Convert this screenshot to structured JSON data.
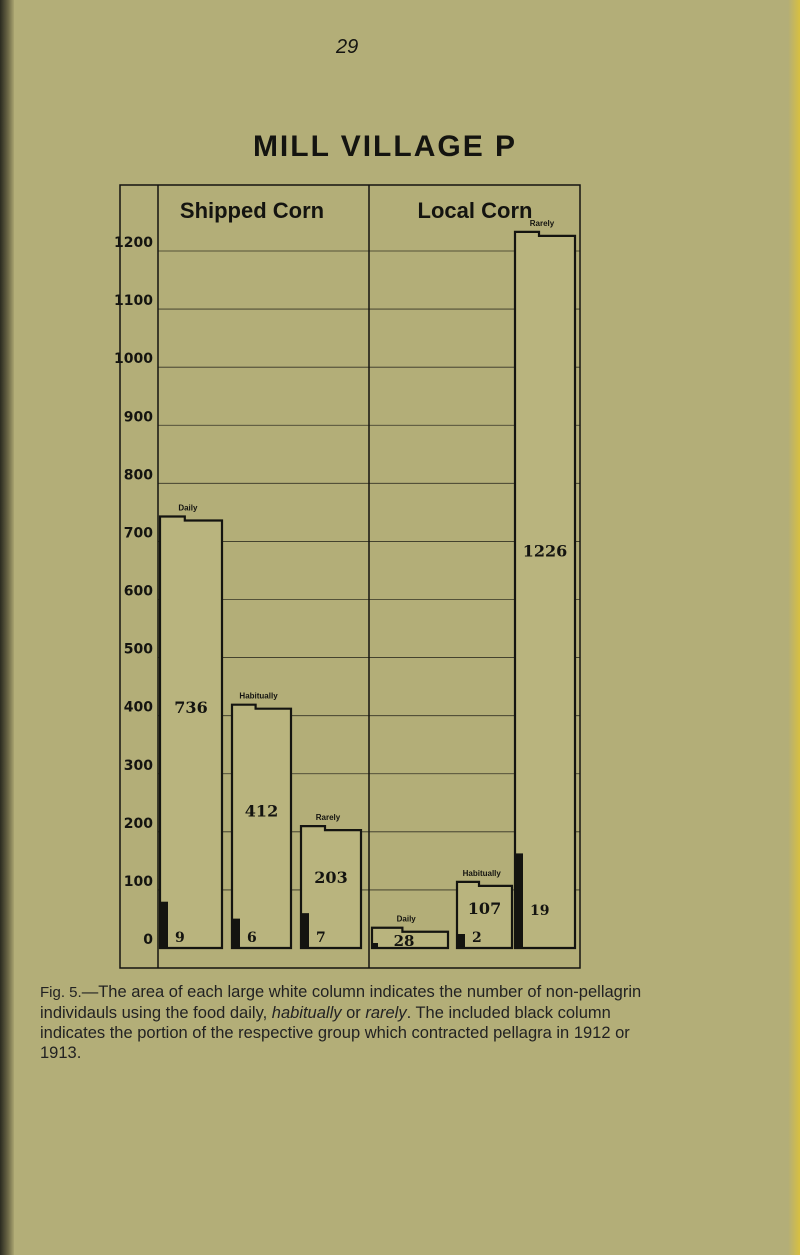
{
  "page_number": "29",
  "caption": {
    "label": "Fig. 5.",
    "text_before": "—The area of each large white column indicates the number of non-pellagrin individauls using the food daily, ",
    "em1": "habitually",
    "text_mid": " or ",
    "em2": "rarely",
    "text_after": ". The included black column indicates the portion of the respective group which contracted pellagra in 1912 or 1913."
  },
  "chart_data": {
    "type": "bar",
    "title": "MILL VILLAGE P",
    "xlabel": "",
    "ylabel": "",
    "ylim": [
      0,
      1200
    ],
    "yticks": [
      "0",
      "100",
      "200",
      "300",
      "400",
      "500",
      "600",
      "700",
      "800",
      "900",
      "1000",
      "1100",
      "1200"
    ],
    "grid": true,
    "groups": [
      {
        "name": "Shipped Corn",
        "bars": [
          {
            "label": "Daily",
            "value": 736,
            "pellagra": 9
          },
          {
            "label": "Habitually",
            "value": 412,
            "pellagra": 6
          },
          {
            "label": "Rarely",
            "value": 203,
            "pellagra": 7
          }
        ]
      },
      {
        "name": "Local Corn",
        "bars": [
          {
            "label": "Daily",
            "value": 28,
            "pellagra": null
          },
          {
            "label": "Habitually",
            "value": 107,
            "pellagra": 2
          },
          {
            "label": "Rarely",
            "value": 1226,
            "pellagra": 19
          }
        ]
      }
    ],
    "colors": {
      "background": "#b3ae78",
      "ink": "#141410"
    }
  }
}
